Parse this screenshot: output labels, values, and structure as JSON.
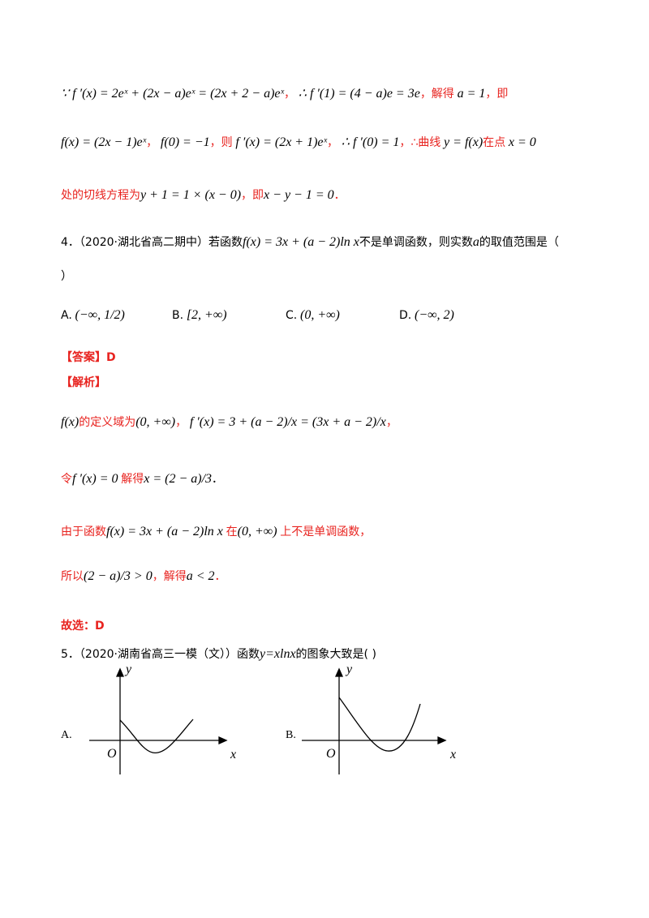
{
  "previous_solution": {
    "lines": [
      [
        "∵ f ′(x) = 2eˣ + (2x − a)eˣ = (2x + 2 − a)eˣ",
        "，",
        "∴ f ′(1) = (4 − a)e = 3e",
        "，解得",
        "a = 1",
        "，即"
      ],
      [
        "f(x) = (2x − 1)eˣ",
        "，",
        "f(0) = −1",
        "，则",
        "f ′(x) = (2x + 1)eˣ",
        "，",
        "∴ f ′(0) = 1",
        "，∴曲线",
        "y = f(x)",
        "在点",
        "x = 0"
      ],
      [
        "处的切线方程为",
        "y + 1 = 1 × (x − 0)",
        "，即",
        "x − y − 1 = 0",
        "．"
      ]
    ]
  },
  "question4": {
    "stem": [
      "4．（2020·湖北省高二期中）若函数",
      "f(x) = 3x + (a − 2)ln x",
      "不是单调函数，则实数",
      "a",
      "的取值范围是（"
    ],
    "stem_end": "）",
    "options": [
      {
        "label": "A.",
        "text": "(−∞, 1/2)"
      },
      {
        "label": "B.",
        "text": "[2, +∞)"
      },
      {
        "label": "C.",
        "text": "(0, +∞)"
      },
      {
        "label": "D.",
        "text": "(−∞, 2)"
      }
    ],
    "answer": "【答案】D",
    "analysis_heading": "【解析】",
    "analysis": [
      [
        "f(x)",
        "的定义域为",
        "(0, +∞)",
        "，",
        "f ′(x) = 3 + (a − 2)/x = (3x + a − 2)/x",
        "，"
      ],
      [
        "令",
        "f ′(x) = 0",
        "解得",
        "x = (2 − a)/3",
        "．"
      ],
      [
        "由于函数",
        "f(x) = 3x + (a − 2)ln x",
        "在",
        "(0, +∞)",
        "上不是单调函数，"
      ],
      [
        "所以",
        "(2 − a)/3 > 0",
        "，解得",
        "a < 2",
        "．"
      ]
    ],
    "conclusion": "故选：D"
  },
  "question5": {
    "stem": [
      "5．（2020·湖南省高三一模（文））函数",
      "y=xlnx",
      "的图象大致是(    )"
    ],
    "graphs": [
      {
        "label": "A.",
        "y_axis": "y",
        "x_axis": "x",
        "origin": "O"
      },
      {
        "label": "B.",
        "y_axis": "y",
        "x_axis": "x",
        "origin": "O"
      }
    ]
  }
}
